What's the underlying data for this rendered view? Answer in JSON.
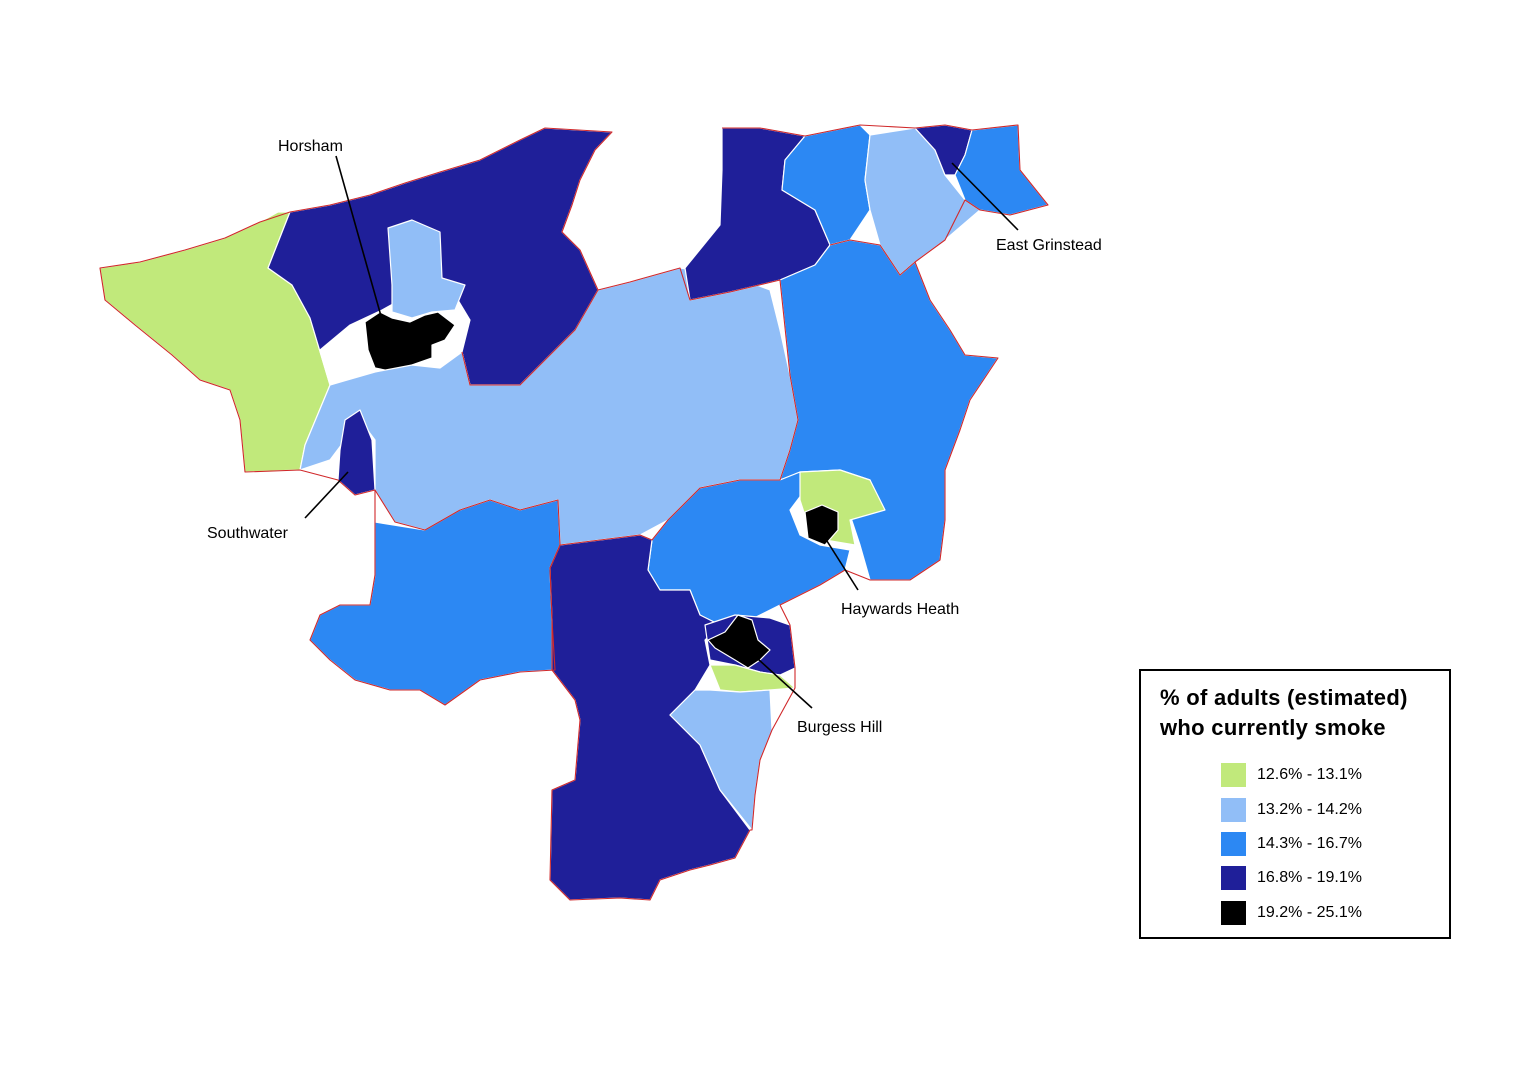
{
  "map": {
    "classes": [
      {
        "label": "12.6% - 13.1%",
        "color": "#c1e97b"
      },
      {
        "label": "13.2% - 14.2%",
        "color": "#91bef7"
      },
      {
        "label": "14.3% - 16.7%",
        "color": "#2c88f3"
      },
      {
        "label": "16.8% - 19.1%",
        "color": "#1f1f99"
      },
      {
        "label": "19.2% - 25.1%",
        "color": "#000000"
      }
    ],
    "towns": {
      "horsham": "Horsham",
      "east_grinstead": "East Grinstead",
      "southwater": "Southwater",
      "haywards_heath": "Haywards Heath",
      "burgess_hill": "Burgess Hill"
    }
  },
  "legend": {
    "title_line1": "% of adults (estimated)",
    "title_line2": "who currently smoke",
    "items": [
      {
        "label": "12.6% - 13.1%",
        "color": "#c1e97b"
      },
      {
        "label": "13.2% - 14.2%",
        "color": "#91bef7"
      },
      {
        "label": "14.3% - 16.7%",
        "color": "#2c88f3"
      },
      {
        "label": "16.8% - 19.1%",
        "color": "#1f1f99"
      },
      {
        "label": "19.2% - 25.1%",
        "color": "#000000"
      }
    ]
  }
}
